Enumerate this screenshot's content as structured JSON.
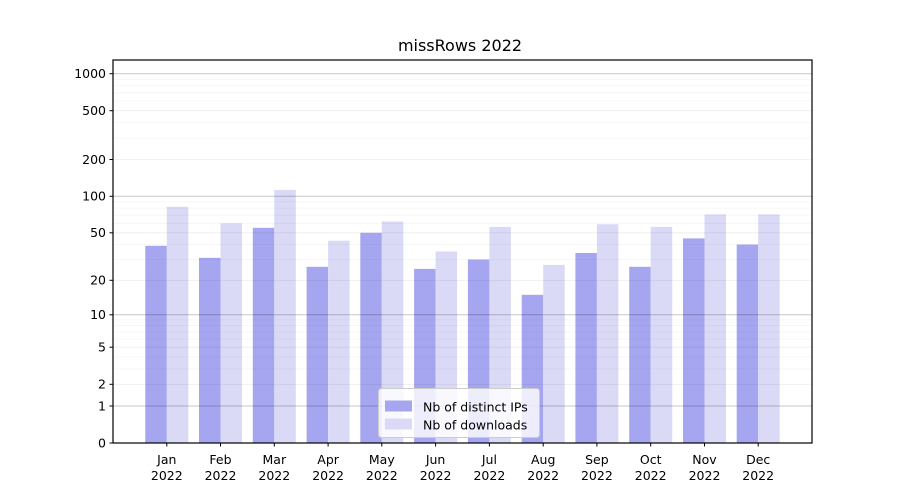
{
  "title": "missRows 2022",
  "chart_data": {
    "type": "bar",
    "title": "missRows 2022",
    "categories": [
      "Jan",
      "Feb",
      "Mar",
      "Apr",
      "May",
      "Jun",
      "Jul",
      "Aug",
      "Sep",
      "Oct",
      "Nov",
      "Dec"
    ],
    "x_year_label": "2022",
    "series": [
      {
        "name": "Nb of distinct IPs",
        "color": "#a6a6f0",
        "values": [
          39,
          31,
          55,
          26,
          50,
          25,
          30,
          15,
          34,
          26,
          45,
          40
        ]
      },
      {
        "name": "Nb of downloads",
        "color": "#dadaf7",
        "values": [
          82,
          60,
          113,
          43,
          62,
          35,
          56,
          27,
          59,
          56,
          71,
          71
        ]
      }
    ],
    "yscale": "log1p",
    "ylim": [
      0,
      1300
    ],
    "yticks": [
      0,
      1,
      2,
      5,
      10,
      20,
      50,
      100,
      200,
      500,
      1000
    ],
    "minor_gridlines": [
      3,
      4,
      6,
      7,
      8,
      9,
      30,
      40,
      60,
      70,
      80,
      90,
      300,
      400,
      600,
      700,
      800,
      900
    ],
    "grid": true,
    "grid_on_top": true,
    "legend": {
      "position": "lower center",
      "entries": [
        "Nb of distinct IPs",
        "Nb of downloads"
      ]
    }
  }
}
